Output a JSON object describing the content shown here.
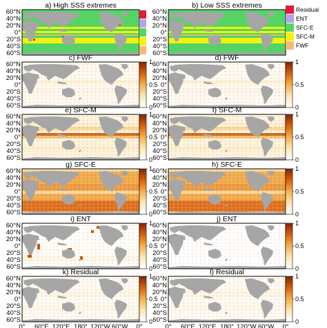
{
  "chart_data": {
    "type": "heatmap",
    "lat_ticks": [
      "60°N",
      "40°N",
      "20°N",
      "0°",
      "20°S",
      "40°S",
      "60°S"
    ],
    "lon_ticks": [
      "0°",
      "60°E",
      "120°E",
      "180°",
      "120°W",
      "60°W",
      "0°"
    ],
    "colorbar": {
      "range": [
        0,
        1
      ],
      "ticks": [
        "1",
        "0.5",
        "0"
      ],
      "colors": [
        "#ffffff",
        "#fde7b8",
        "#f6b24a",
        "#d9600d",
        "#7f2704"
      ]
    },
    "legend": [
      {
        "label": "Residual",
        "color": "#e41a3a"
      },
      {
        "label": "ENT",
        "color": "#b7a0e8"
      },
      {
        "label": "SFC-E",
        "color": "#55d465"
      },
      {
        "label": "SFC-M",
        "color": "#f2f20e"
      },
      {
        "label": "FWF",
        "color": "#f8b978"
      }
    ],
    "land_color": "#a6a6a6",
    "panels": [
      {
        "label": "a) High SSS extremes",
        "kind": "category",
        "field": "category_high"
      },
      {
        "label": "b) Low SSS extremes",
        "kind": "category",
        "field": "category_low"
      },
      {
        "label": "c) FWF",
        "kind": "fraction",
        "field": "fwf_high",
        "level": 0.12
      },
      {
        "label": "d) FWF",
        "kind": "fraction",
        "field": "fwf_low",
        "level": 0.1
      },
      {
        "label": "e) SFC-M",
        "kind": "fraction",
        "field": "sfcm_high",
        "level": 0.25
      },
      {
        "label": "f) SFC-M",
        "kind": "fraction",
        "field": "sfcm_low",
        "level": 0.25
      },
      {
        "label": "g) SFC-E",
        "kind": "fraction",
        "field": "sfce_high",
        "level": 0.6
      },
      {
        "label": "h) SFC-E",
        "kind": "fraction",
        "field": "sfce_low",
        "level": 0.6
      },
      {
        "label": "i) ENT",
        "kind": "fraction",
        "field": "ent_high",
        "level": 0.05
      },
      {
        "label": "j) ENT",
        "kind": "fraction",
        "field": "ent_low",
        "level": 0.02
      },
      {
        "label": "k) Residual",
        "kind": "fraction",
        "field": "res_high",
        "level": 0.1
      },
      {
        "label": "l) Residual",
        "kind": "fraction",
        "field": "res_low",
        "level": 0.1
      }
    ]
  }
}
